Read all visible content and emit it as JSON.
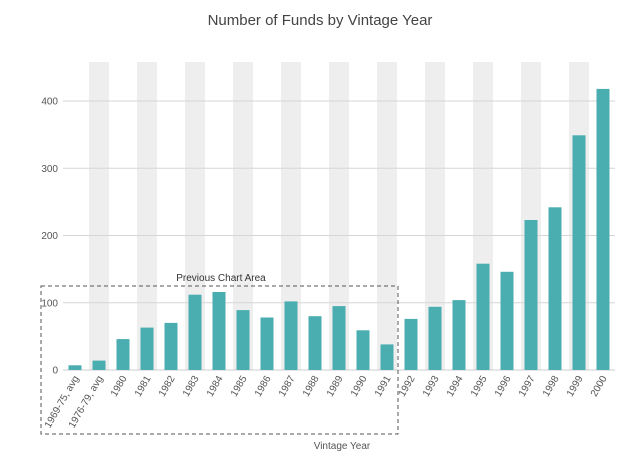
{
  "chart_data": {
    "type": "bar",
    "title": "Number of Funds by Vintage Year",
    "xlabel": "Vintage Year",
    "ylabel": "",
    "ylim": [
      0,
      450
    ],
    "yticks": [
      0,
      100,
      200,
      300,
      400
    ],
    "grid": true,
    "categories": [
      "1969-75, avg",
      "1976-79, avg",
      "1980",
      "1981",
      "1982",
      "1983",
      "1984",
      "1985",
      "1986",
      "1987",
      "1988",
      "1989",
      "1990",
      "1991",
      "1992",
      "1993",
      "1994",
      "1995",
      "1996",
      "1997",
      "1998",
      "1999",
      "2000"
    ],
    "values": [
      7,
      14,
      46,
      63,
      70,
      112,
      116,
      89,
      78,
      102,
      80,
      95,
      59,
      38,
      76,
      94,
      104,
      158,
      146,
      223,
      242,
      349,
      418
    ],
    "annotation": "Previous Chart Area",
    "colors": {
      "bar": "#4aaeb0",
      "band": "#eeeeee",
      "grid": "#d6d6d6",
      "axis": "#cccccc"
    }
  }
}
